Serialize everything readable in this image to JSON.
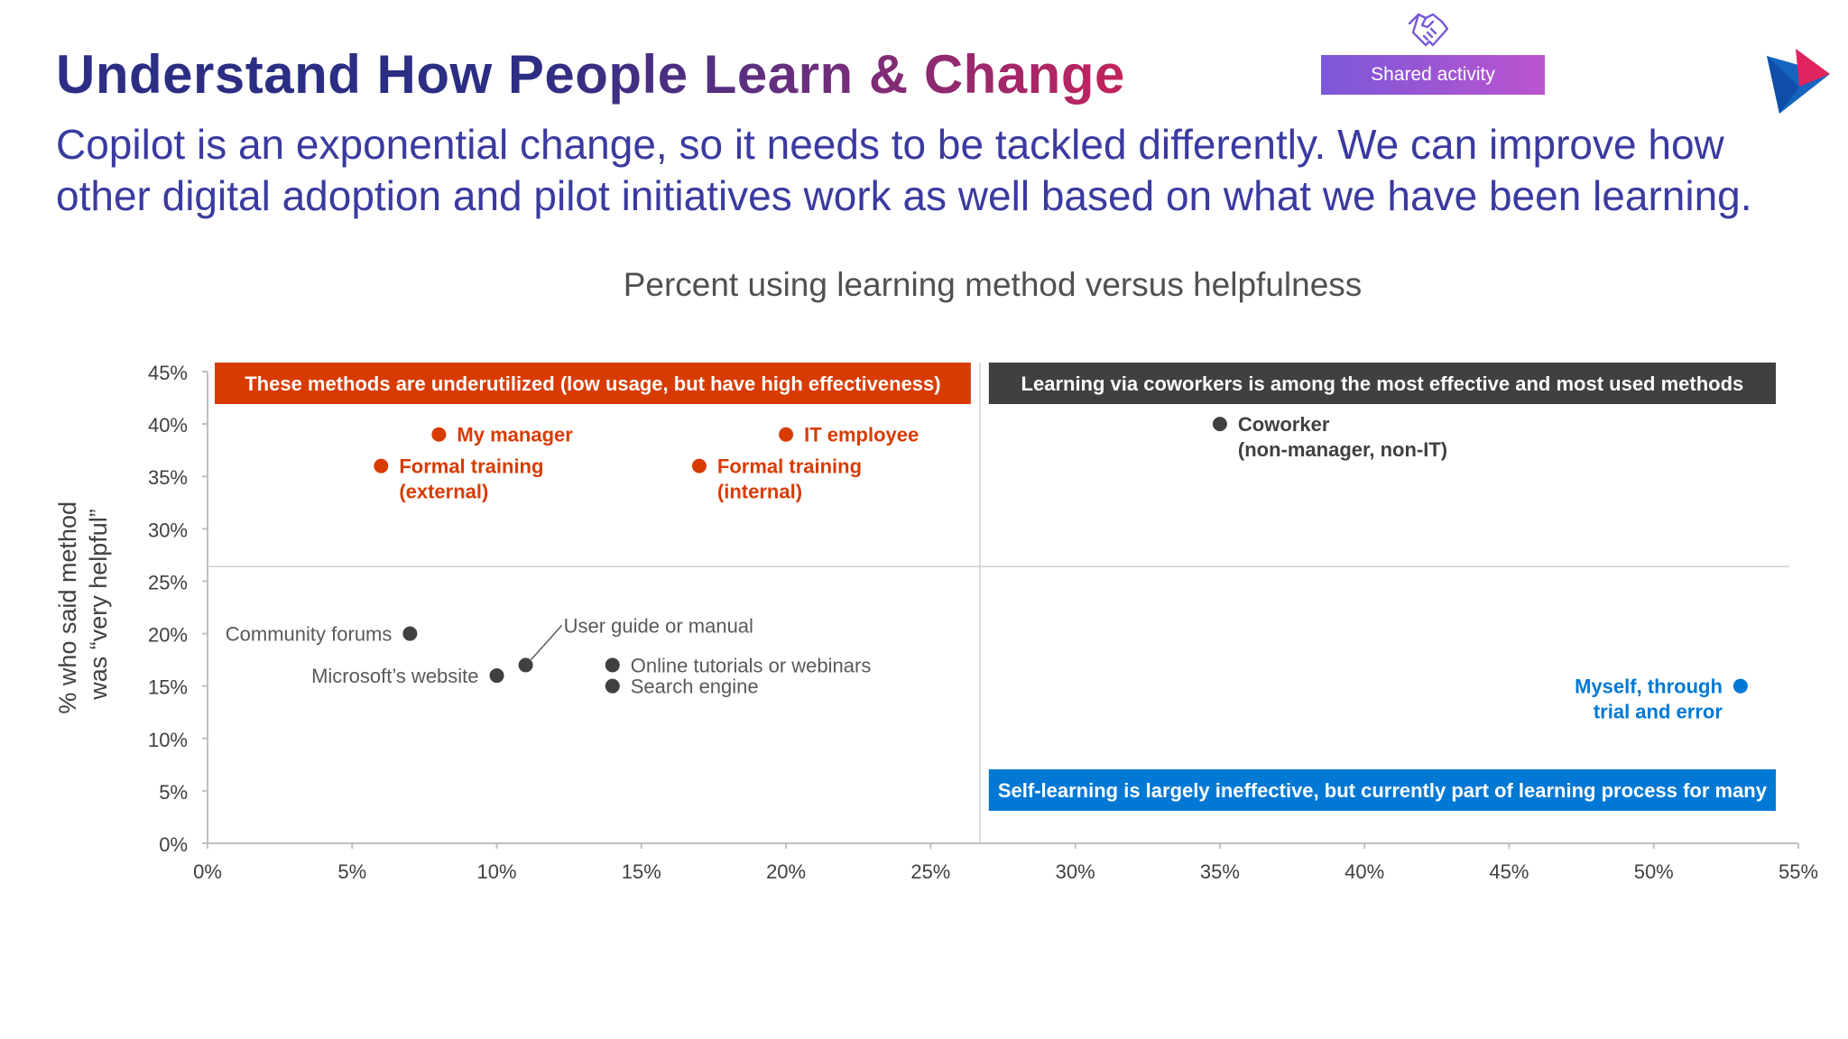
{
  "slide": {
    "title": "Understand How People Learn & Change",
    "subtitle": "Copilot is an exponential change, so it needs to be tackled differently. We can improve how other digital adoption and pilot initiatives work as well based on what we have been learning.",
    "badge_label": "Shared activity",
    "badge_icon": "handshake-icon",
    "logo_icon": "play-triangle-logo"
  },
  "colors": {
    "orange": "#d83b01",
    "dark": "#404040",
    "blue": "#0078d4",
    "title_blue": "#2b2e83",
    "title_magenta": "#c3235c",
    "badge_purple": "#9b59d0"
  },
  "chart_data": {
    "type": "scatter",
    "title": "Percent using learning method versus helpfulness",
    "xlabel": "",
    "ylabel": "% who said method was “very helpful”",
    "ylabel_lines": [
      "% who said method",
      "was “very helpful”"
    ],
    "xlim": [
      0,
      55
    ],
    "ylim": [
      0,
      45
    ],
    "xticks": [
      0,
      5,
      10,
      15,
      20,
      25,
      30,
      35,
      40,
      45,
      50,
      55
    ],
    "yticks": [
      0,
      5,
      10,
      15,
      20,
      25,
      30,
      35,
      40,
      45
    ],
    "xtick_labels": [
      "0%",
      "5%",
      "10%",
      "15%",
      "20%",
      "25%",
      "30%",
      "35%",
      "40%",
      "45%",
      "50%",
      "55%"
    ],
    "ytick_labels": [
      "0%",
      "5%",
      "10%",
      "15%",
      "20%",
      "25%",
      "30%",
      "35%",
      "40%",
      "45%"
    ],
    "divider_x": 26.7,
    "divider_y": 26.4,
    "quadrant_labels": [
      {
        "text": "These methods are underutilized (low usage, but have high effectiveness)",
        "color": "orange",
        "position": "top-left"
      },
      {
        "text": "Learning via coworkers is among the most effective and most used methods",
        "color": "dark",
        "position": "top-right"
      },
      {
        "text": "Self-learning is largely ineffective, but currently part of learning process for many",
        "color": "blue",
        "position": "bottom-right"
      }
    ],
    "points": [
      {
        "label_lines": [
          "My manager"
        ],
        "x": 8.0,
        "y": 39.0,
        "color": "orange",
        "bold": true,
        "label_side": "right"
      },
      {
        "label_lines": [
          "IT employee"
        ],
        "x": 20.0,
        "y": 39.0,
        "color": "orange",
        "bold": true,
        "label_side": "right"
      },
      {
        "label_lines": [
          "Formal training",
          "(external)"
        ],
        "x": 6.0,
        "y": 36.0,
        "color": "orange",
        "bold": true,
        "label_side": "right"
      },
      {
        "label_lines": [
          "Formal training",
          "(internal)"
        ],
        "x": 17.0,
        "y": 36.0,
        "color": "orange",
        "bold": true,
        "label_side": "right"
      },
      {
        "label_lines": [
          "Coworker",
          "(non-manager, non-IT)"
        ],
        "x": 35.0,
        "y": 40.0,
        "color": "dark",
        "bold": true,
        "label_side": "right"
      },
      {
        "label_lines": [
          "Community forums"
        ],
        "x": 7.0,
        "y": 20.0,
        "color": "dark",
        "bold": false,
        "label_side": "left"
      },
      {
        "label_lines": [
          "Microsoft’s website"
        ],
        "x": 10.0,
        "y": 16.0,
        "color": "dark",
        "bold": false,
        "label_side": "left"
      },
      {
        "label_lines": [
          "User guide or manual"
        ],
        "x": 11.0,
        "y": 17.0,
        "color": "dark",
        "bold": false,
        "label_side": "callout"
      },
      {
        "label_lines": [
          "Online tutorials or webinars"
        ],
        "x": 14.0,
        "y": 17.0,
        "color": "dark",
        "bold": false,
        "label_side": "right"
      },
      {
        "label_lines": [
          "Search engine"
        ],
        "x": 14.0,
        "y": 15.0,
        "color": "dark",
        "bold": false,
        "label_side": "right"
      },
      {
        "label_lines": [
          "Myself, through",
          "trial and error"
        ],
        "x": 53.0,
        "y": 15.0,
        "color": "blue",
        "bold": true,
        "label_side": "left"
      }
    ]
  }
}
